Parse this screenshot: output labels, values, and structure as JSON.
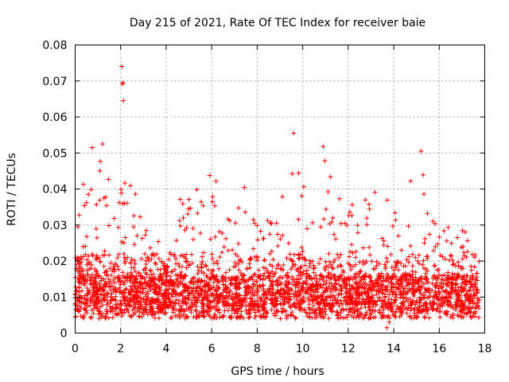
{
  "chart_data": {
    "type": "scatter",
    "title": "Day 215 of 2021, Rate Of TEC Index for receiver baie",
    "xlabel": "GPS time / hours",
    "ylabel": "ROTI / TECUs",
    "xlim": [
      0,
      18
    ],
    "ylim": [
      0,
      0.08
    ],
    "x_ticks": [
      "0",
      "2",
      "4",
      "6",
      "8",
      "10",
      "12",
      "14",
      "16",
      "18"
    ],
    "y_ticks": [
      "0",
      "0.01",
      "0.02",
      "0.03",
      "0.04",
      "0.05",
      "0.06",
      "0.07",
      "0.08"
    ],
    "grid": true,
    "marker": "+",
    "color": "#ff0000",
    "envelope": {
      "x": [
        0,
        0.5,
        1,
        1.5,
        2,
        2.5,
        3,
        3.5,
        4,
        4.5,
        5,
        5.5,
        6,
        6.5,
        7,
        7.5,
        8,
        8.5,
        9,
        9.5,
        10,
        10.5,
        11,
        11.5,
        12,
        12.5,
        13,
        13.5,
        14,
        14.5,
        15,
        15.5,
        16,
        16.5,
        17,
        17.5,
        17.75
      ],
      "y": [
        0.036,
        0.045,
        0.05,
        0.046,
        0.042,
        0.046,
        0.032,
        0.03,
        0.018,
        0.036,
        0.046,
        0.04,
        0.047,
        0.035,
        0.036,
        0.046,
        0.04,
        0.034,
        0.04,
        0.05,
        0.045,
        0.04,
        0.05,
        0.04,
        0.035,
        0.04,
        0.036,
        0.045,
        0.046,
        0.036,
        0.05,
        0.042,
        0.032,
        0.03,
        0.03,
        0.028,
        0.036
      ]
    },
    "outliers": [
      {
        "x": 2.05,
        "y": 0.074
      },
      {
        "x": 2.1,
        "y": 0.0695
      },
      {
        "x": 2.08,
        "y": 0.0692
      },
      {
        "x": 2.12,
        "y": 0.0645
      },
      {
        "x": 9.6,
        "y": 0.0555
      },
      {
        "x": 10.9,
        "y": 0.0518
      },
      {
        "x": 1.2,
        "y": 0.0525
      },
      {
        "x": 0.75,
        "y": 0.0515
      },
      {
        "x": 15.2,
        "y": 0.0505
      },
      {
        "x": 13.7,
        "y": 0.0015
      },
      {
        "x": 13.8,
        "y": 0.003
      }
    ]
  }
}
